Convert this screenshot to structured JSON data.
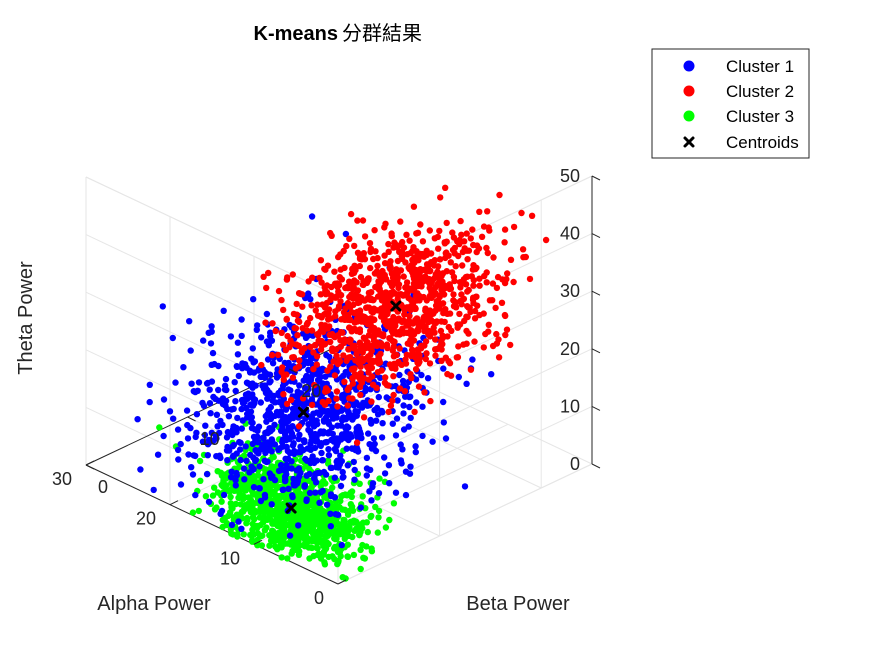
{
  "chart_data": {
    "type": "scatter",
    "title": "K-means",
    "title_suffix": "分群結果",
    "xlabel": "Alpha Power",
    "ylabel": "Beta Power",
    "zlabel": "Theta Power",
    "xlim": [
      0,
      30
    ],
    "ylim": [
      0,
      25
    ],
    "zlim": [
      0,
      50
    ],
    "xticks": [
      "0",
      "10",
      "20",
      "30"
    ],
    "yticks": [
      "0",
      "10",
      "20"
    ],
    "zticks": [
      "0",
      "10",
      "20",
      "30",
      "40",
      "50"
    ],
    "grid": true,
    "legend_position": "top-right",
    "series": [
      {
        "name": "Cluster 1",
        "color": "#0000ff",
        "marker": "circle",
        "mean": [
          15,
          9,
          12
        ],
        "spread": [
          4.5,
          4.5,
          6.5
        ],
        "count": 1000
      },
      {
        "name": "Cluster 2",
        "color": "#ff0000",
        "marker": "circle",
        "mean": [
          4,
          9,
          38
        ],
        "spread": [
          3,
          4.5,
          6
        ],
        "count": 1000
      },
      {
        "name": "Cluster 3",
        "color": "#00ff00",
        "marker": "circle",
        "mean": [
          8,
          2,
          6
        ],
        "spread": [
          4,
          1.8,
          3.5
        ],
        "count": 1000
      },
      {
        "name": "Centroids",
        "color": "#000000",
        "marker": "x",
        "points": [
          [
            15,
            9,
            12
          ],
          [
            4,
            9,
            38
          ],
          [
            8,
            2,
            6
          ]
        ]
      }
    ]
  }
}
